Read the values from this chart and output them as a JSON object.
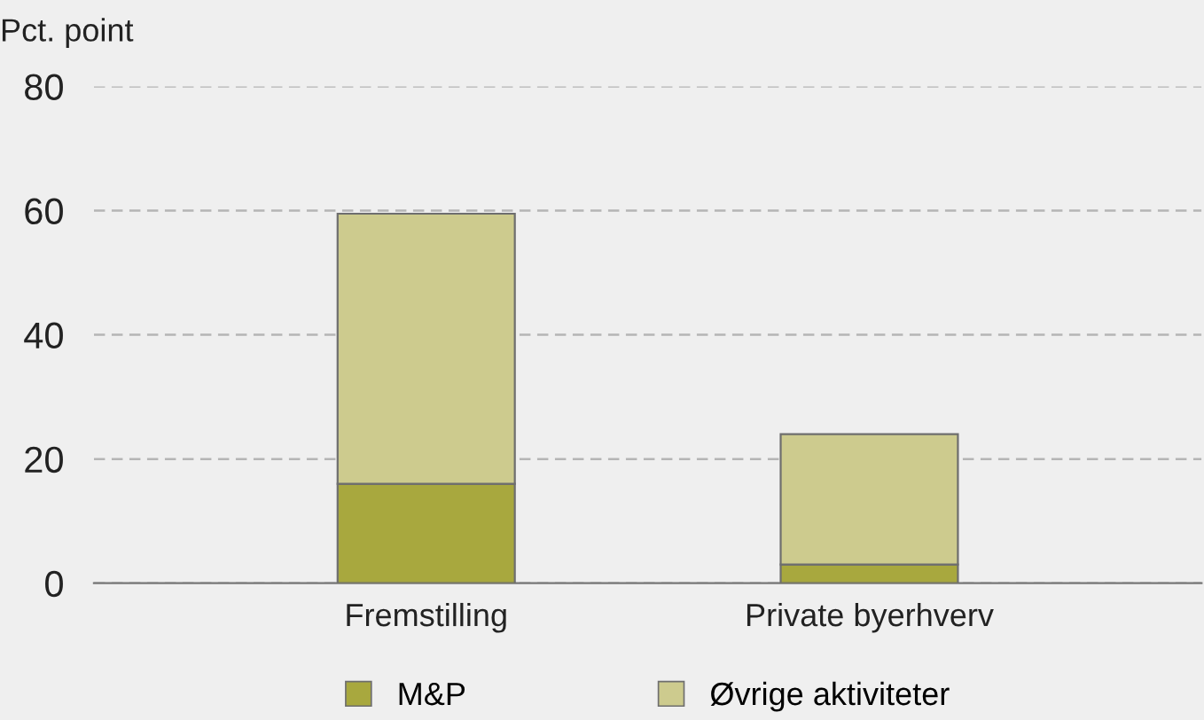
{
  "chart_data": {
    "type": "bar",
    "ylabel": "Pct. point",
    "categories": [
      "Fremstilling",
      "Private byerhverv"
    ],
    "series": [
      {
        "name": "M&P",
        "color": "#a8a83e",
        "values": [
          16,
          3
        ]
      },
      {
        "name": "Øvrige aktiviteter",
        "color": "#cdcb8e",
        "values": [
          43.5,
          21
        ]
      }
    ],
    "stacked": true,
    "ylim": [
      0,
      80
    ],
    "yticks": [
      0,
      20,
      40,
      60,
      80
    ],
    "grid": "y",
    "legend": "bottom"
  }
}
